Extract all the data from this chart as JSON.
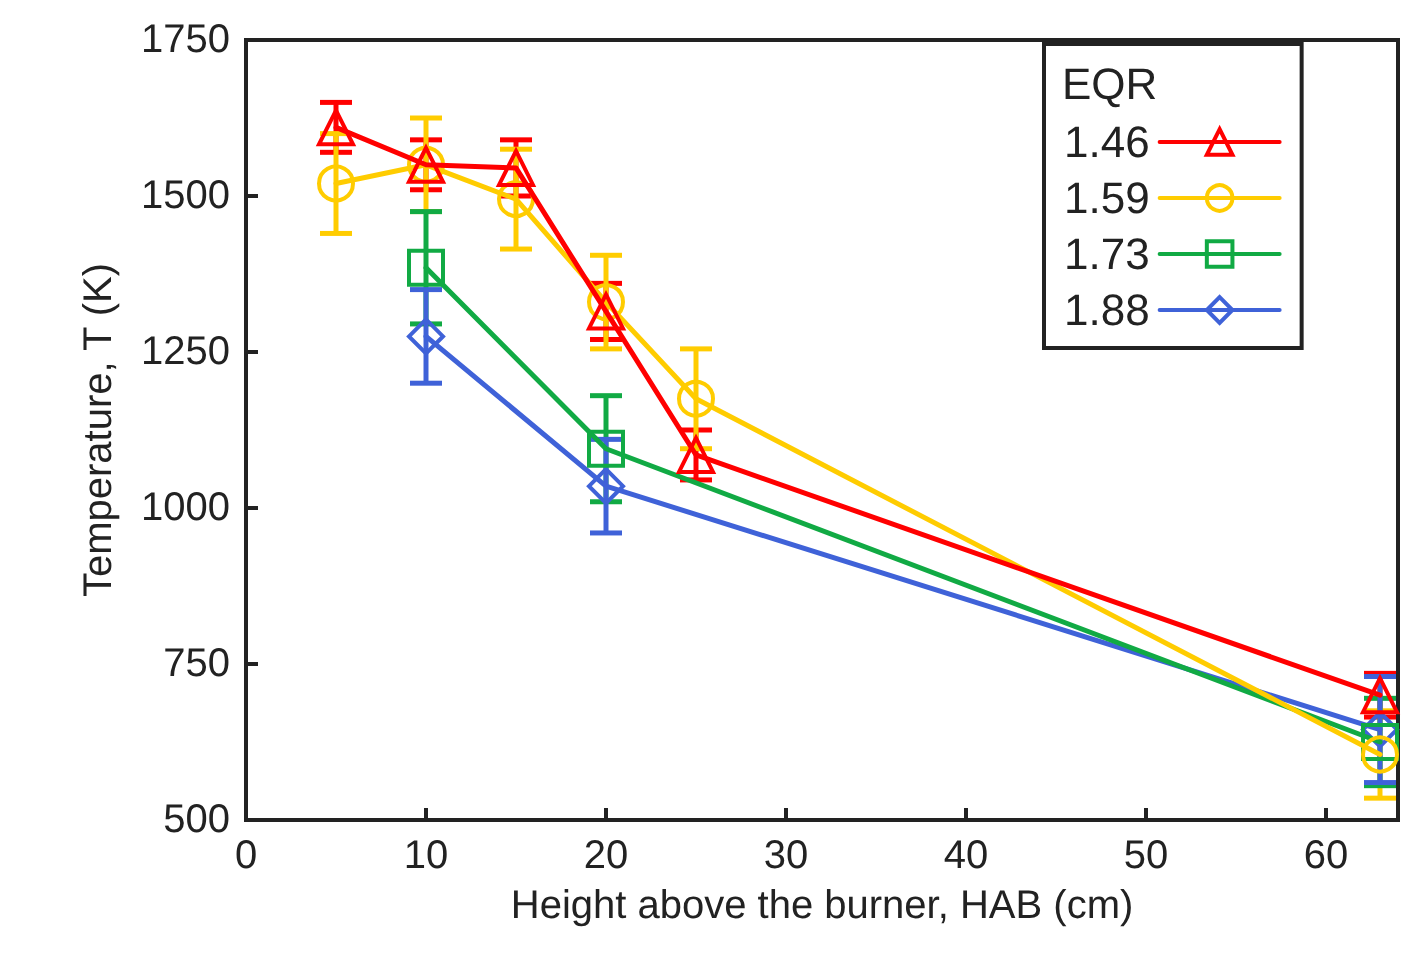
{
  "chart_data": {
    "type": "line",
    "xlabel": "Height above the burner, HAB (cm)",
    "ylabel": "Temperature, T (K)",
    "legend_title": "EQR",
    "legend": "top right",
    "grid": false,
    "xlim": [
      0,
      64
    ],
    "xticks": [
      0,
      10,
      20,
      30,
      40,
      50,
      60
    ],
    "ylim": [
      500,
      1750
    ],
    "yticks": [
      500,
      750,
      1000,
      1250,
      1500,
      1750
    ],
    "series": [
      {
        "name": "1.46",
        "color": "#ff0000",
        "marker": "triangle",
        "x": [
          5,
          10,
          15,
          20,
          25,
          63
        ],
        "values": [
          1610,
          1550,
          1545,
          1315,
          1085,
          700
        ],
        "errors": [
          40,
          40,
          45,
          45,
          40,
          35
        ]
      },
      {
        "name": "1.59",
        "color": "#ffcc00",
        "marker": "circle",
        "x": [
          5,
          10,
          15,
          20,
          25,
          63
        ],
        "values": [
          1520,
          1550,
          1495,
          1330,
          1175,
          605
        ],
        "errors": [
          80,
          75,
          80,
          75,
          80,
          70
        ]
      },
      {
        "name": "1.73",
        "color": "#11aa44",
        "marker": "square",
        "x": [
          10,
          20,
          63
        ],
        "values": [
          1385,
          1095,
          625
        ],
        "errors": [
          90,
          85,
          70
        ]
      },
      {
        "name": "1.88",
        "color": "#3f62d8",
        "marker": "diamond",
        "x": [
          10,
          20,
          63
        ],
        "values": [
          1275,
          1035,
          645
        ],
        "errors": [
          75,
          75,
          85
        ]
      }
    ]
  }
}
